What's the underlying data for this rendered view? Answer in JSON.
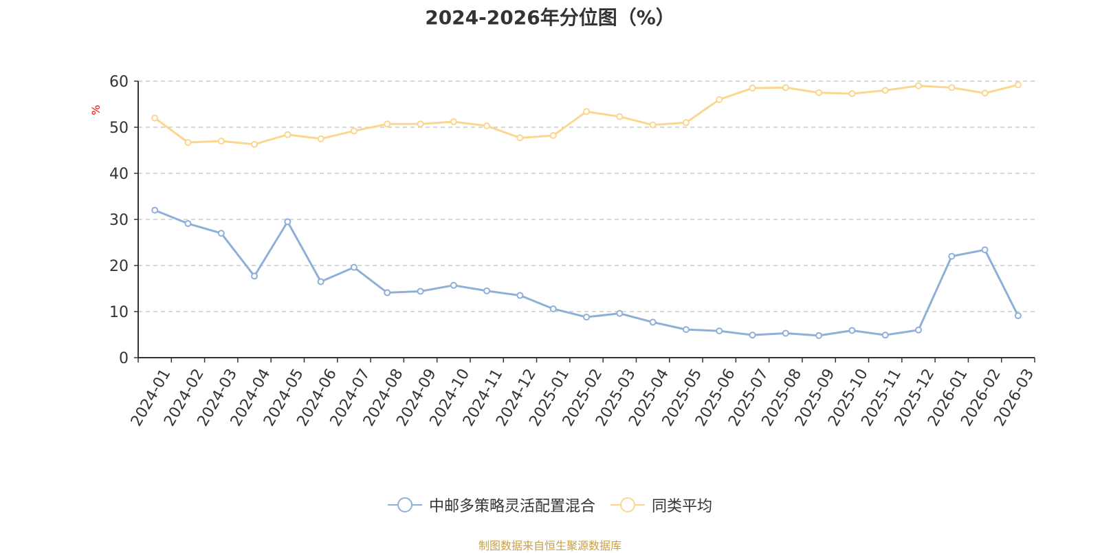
{
  "chart_data": {
    "type": "line",
    "title": "2024-2026年分位图（%）",
    "ylabel": "%",
    "xlabel": "",
    "ylim": [
      0,
      60
    ],
    "yticks": [
      0,
      10,
      20,
      30,
      40,
      50,
      60
    ],
    "grid": true,
    "legend_position": "bottom",
    "categories": [
      "2024-01",
      "2024-02",
      "2024-03",
      "2024-04",
      "2024-05",
      "2024-06",
      "2024-07",
      "2024-08",
      "2024-09",
      "2024-10",
      "2024-11",
      "2024-12",
      "2025-01",
      "2025-02",
      "2025-03",
      "2025-04",
      "2025-05",
      "2025-06",
      "2025-07",
      "2025-08",
      "2025-09",
      "2025-10",
      "2025-11",
      "2025-12",
      "2026-01",
      "2026-02",
      "2026-03"
    ],
    "series": [
      {
        "name": "中邮多策略灵活配置混合",
        "color": "#8eafd8",
        "values": [
          32.0,
          29.1,
          27.0,
          17.7,
          29.5,
          16.5,
          19.6,
          14.1,
          14.4,
          15.7,
          14.5,
          13.5,
          10.6,
          8.8,
          9.6,
          7.7,
          6.1,
          5.8,
          4.9,
          5.3,
          4.8,
          5.9,
          4.9,
          6.0,
          22.0,
          23.4,
          9.1
        ]
      },
      {
        "name": "同类平均",
        "color": "#fbd68e",
        "values": [
          52.0,
          46.7,
          47.0,
          46.3,
          48.4,
          47.5,
          49.2,
          50.7,
          50.7,
          51.2,
          50.3,
          47.7,
          48.2,
          53.4,
          52.3,
          50.5,
          51.0,
          56.0,
          58.5,
          58.6,
          57.5,
          57.3,
          58.0,
          59.0,
          58.6,
          57.4,
          59.2
        ]
      }
    ]
  },
  "footer": {
    "source": "制图数据来自恒生聚源数据库"
  }
}
